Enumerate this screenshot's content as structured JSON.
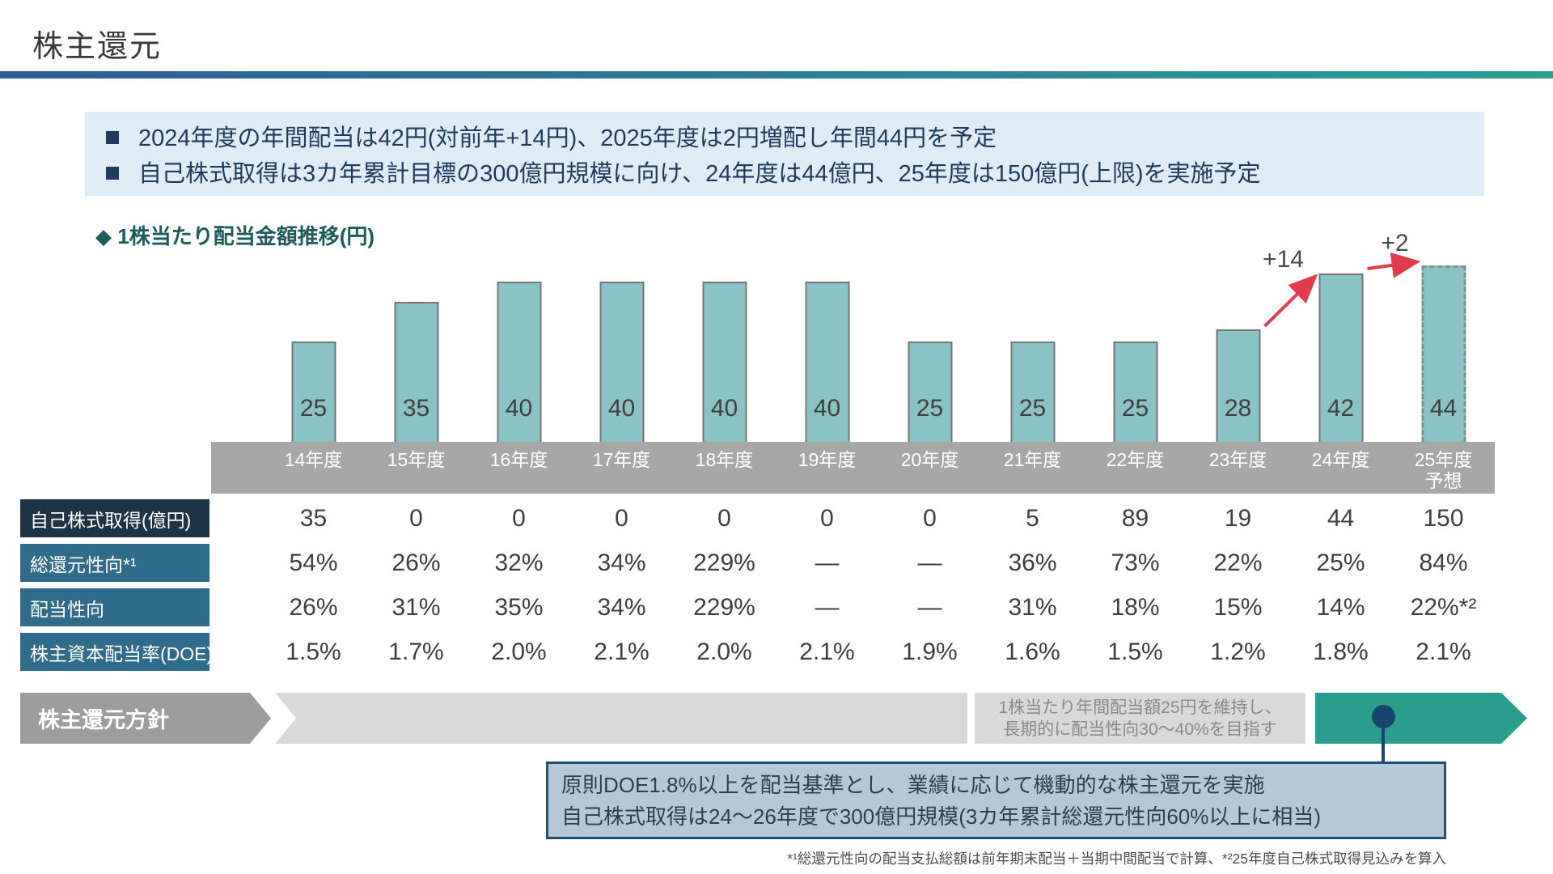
{
  "page": {
    "title": "株主還元"
  },
  "summary": {
    "bullets": [
      "2024年度の年間配当は42円(対前年+14円)、2025年度は2円増配し年間44円を予定",
      "自己株式取得は3カ年累計目標の300億円規模に向け、24年度は44億円、25年度は150億円(上限)を実施予定"
    ]
  },
  "chart": {
    "marker": "◆",
    "title": "1株当たり配当金額推移(円)",
    "axis_labels": [
      {
        "label": "14年度",
        "sub": ""
      },
      {
        "label": "15年度",
        "sub": ""
      },
      {
        "label": "16年度",
        "sub": ""
      },
      {
        "label": "17年度",
        "sub": ""
      },
      {
        "label": "18年度",
        "sub": ""
      },
      {
        "label": "19年度",
        "sub": ""
      },
      {
        "label": "20年度",
        "sub": ""
      },
      {
        "label": "21年度",
        "sub": ""
      },
      {
        "label": "22年度",
        "sub": ""
      },
      {
        "label": "23年度",
        "sub": ""
      },
      {
        "label": "24年度",
        "sub": ""
      },
      {
        "label": "25年度",
        "sub": "予想"
      }
    ]
  },
  "chart_data": {
    "type": "bar",
    "title": "1株当たり配当金額推移(円)",
    "categories": [
      "14年度",
      "15年度",
      "16年度",
      "17年度",
      "18年度",
      "19年度",
      "20年度",
      "21年度",
      "22年度",
      "23年度",
      "24年度",
      "25年度予想"
    ],
    "values": [
      25,
      35,
      40,
      40,
      40,
      40,
      25,
      25,
      25,
      28,
      42,
      44
    ],
    "ylim": [
      0,
      50
    ],
    "grid": false,
    "forecast_last_bar": true,
    "bar_color": "#89c3c5",
    "annotations": [
      {
        "text": "+14",
        "from": "23年度",
        "to": "24年度",
        "color": "#e23b4d"
      },
      {
        "text": "+2",
        "from": "24年度",
        "to": "25年度予想",
        "color": "#e23b4d"
      }
    ],
    "table": {
      "rows": [
        {
          "header": "自己株式取得(億円)",
          "values": [
            "35",
            "0",
            "0",
            "0",
            "0",
            "0",
            "0",
            "5",
            "89",
            "19",
            "44",
            "150"
          ]
        },
        {
          "header": "総還元性向*¹",
          "values": [
            "54%",
            "26%",
            "32%",
            "34%",
            "229%",
            "—",
            "—",
            "36%",
            "73%",
            "22%",
            "25%",
            "84%"
          ]
        },
        {
          "header": "配当性向",
          "values": [
            "26%",
            "31%",
            "35%",
            "34%",
            "229%",
            "—",
            "—",
            "31%",
            "18%",
            "15%",
            "14%",
            "22%*²"
          ]
        },
        {
          "header": "株主資本配当率(DOE)",
          "values": [
            "1.5%",
            "1.7%",
            "2.0%",
            "2.1%",
            "2.0%",
            "2.1%",
            "1.9%",
            "1.6%",
            "1.5%",
            "1.2%",
            "1.8%",
            "2.1%"
          ]
        }
      ]
    }
  },
  "policy": {
    "label": "株主還元方針",
    "note_lines": [
      "1株当たり年間配当額25円を維持し、",
      "長期的に配当性向30～40%を目指す"
    ],
    "callout_lines": [
      "原則DOE1.8%以上を配当基準とし、業績に応じて機動的な株主還元を実施",
      "自己株式取得は24～26年度で300億円規模(3カ年累計総還元性向60%以上に相当)"
    ]
  },
  "footnote": "*¹総還元性向の配当支払総額は前年期末配当＋当期中間配当で計算、*²25年度自己株式取得見込みを算入",
  "colors": {
    "bar": "#89c3c5",
    "accent_teal": "#2a9d8f",
    "navy": "#1d3446",
    "steel_blue": "#2f6b8b",
    "arrow_red": "#e23b4d",
    "pin_navy": "#17456b"
  }
}
